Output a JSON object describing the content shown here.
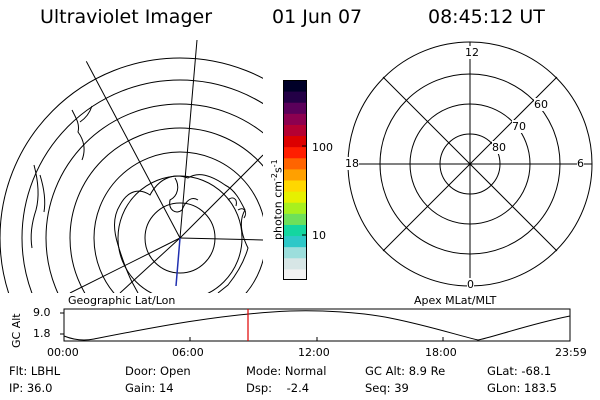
{
  "header": {
    "instrument": "Ultraviolet Imager",
    "date": "01 Jun 07",
    "time": "08:45:12 UT"
  },
  "left_panel": {
    "label": "Geographic Lat/Lon"
  },
  "right_panel": {
    "label": "Apex MLat/MLT",
    "mlt_labels": {
      "top": "12",
      "right": "6",
      "bottom": "0",
      "left": "18"
    },
    "lat_labels": [
      "60",
      "70",
      "80"
    ]
  },
  "colorbar": {
    "unit_label": "photon cm",
    "unit_sup1": "-2",
    "unit_mid": "s",
    "unit_sup2": "-1",
    "tick_100": "100",
    "tick_10": "10",
    "colors": [
      "#f2f2f2",
      "#d7e6e6",
      "#9cdedc",
      "#2ec8c8",
      "#14d6a0",
      "#6ee05a",
      "#a8f01e",
      "#e6f000",
      "#ffd700",
      "#ffa000",
      "#ff6400",
      "#ff1e00",
      "#dc0000",
      "#b40032",
      "#8c0050",
      "#5a005a",
      "#230046",
      "#000028"
    ]
  },
  "altitude_plot": {
    "ylabel": "GC Alt",
    "yticks": [
      "9.0",
      "1.8"
    ],
    "xticks": [
      "00:00",
      "06:00",
      "12:00",
      "18:00",
      "23:59"
    ],
    "marker_color": "#e00000"
  },
  "info": [
    [
      "Flt: LBHL",
      "Door: Open",
      "Mode: Normal",
      "GC Alt: 8.9 Re",
      "GLat: -68.1"
    ],
    [
      "IP: 36.0",
      "Gain: 14",
      "Dsp:    -2.4",
      "Seq: 39",
      "GLon: 183.5"
    ]
  ]
}
